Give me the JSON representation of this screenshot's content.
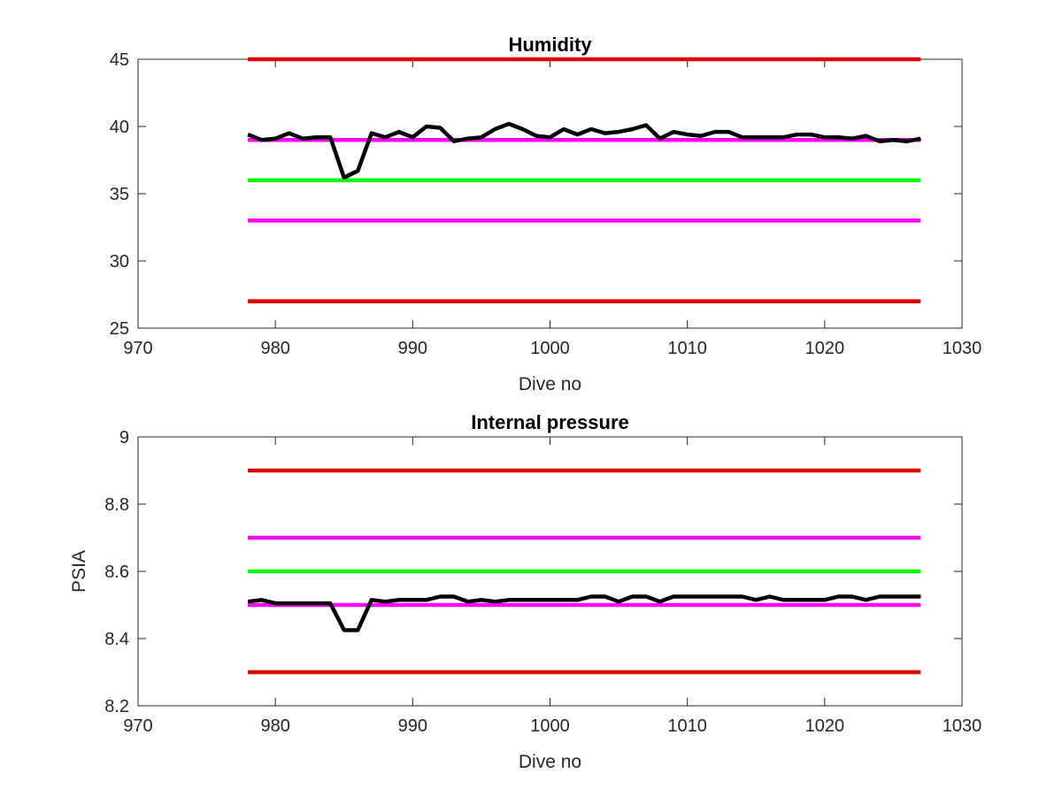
{
  "chart_data": [
    {
      "type": "line",
      "title": "Humidity",
      "xlabel": "Dive no",
      "ylabel": "",
      "xlim": [
        970,
        1030
      ],
      "ylim": [
        25,
        45
      ],
      "xticks": [
        970,
        980,
        990,
        1000,
        1010,
        1020,
        1030
      ],
      "xtick_labels": [
        "970",
        "980",
        "990",
        "1000",
        "1010",
        "1020",
        "1030"
      ],
      "yticks": [
        25,
        30,
        35,
        40,
        45
      ],
      "ytick_labels": [
        "25",
        "30",
        "35",
        "40",
        "45"
      ],
      "grid": false,
      "series": [
        {
          "color": "#dd0000",
          "kind": "threshold",
          "x": [
            978,
            1027
          ],
          "y": [
            45,
            45
          ]
        },
        {
          "color": "#ff00ff",
          "kind": "threshold",
          "x": [
            978,
            1027
          ],
          "y": [
            39,
            39
          ]
        },
        {
          "color": "#00ff00",
          "kind": "threshold",
          "x": [
            978,
            1027
          ],
          "y": [
            36,
            36
          ]
        },
        {
          "color": "#ff00ff",
          "kind": "threshold",
          "x": [
            978,
            1027
          ],
          "y": [
            33,
            33
          ]
        },
        {
          "color": "#dd0000",
          "kind": "threshold",
          "x": [
            978,
            1027
          ],
          "y": [
            27,
            27
          ]
        },
        {
          "color": "#000000",
          "kind": "measurement",
          "x": [
            978,
            979,
            980,
            981,
            982,
            983,
            984,
            985,
            986,
            987,
            988,
            989,
            990,
            991,
            992,
            993,
            994,
            995,
            996,
            997,
            998,
            999,
            1000,
            1001,
            1002,
            1003,
            1004,
            1005,
            1006,
            1007,
            1008,
            1009,
            1010,
            1011,
            1012,
            1013,
            1014,
            1015,
            1016,
            1017,
            1018,
            1019,
            1020,
            1021,
            1022,
            1023,
            1024,
            1025,
            1026,
            1027
          ],
          "y": [
            39.4,
            39.0,
            39.1,
            39.5,
            39.1,
            39.2,
            39.2,
            36.2,
            36.7,
            39.5,
            39.2,
            39.6,
            39.2,
            40.0,
            39.9,
            38.9,
            39.1,
            39.2,
            39.8,
            40.2,
            39.8,
            39.3,
            39.2,
            39.8,
            39.4,
            39.8,
            39.5,
            39.6,
            39.8,
            40.1,
            39.1,
            39.6,
            39.4,
            39.3,
            39.6,
            39.6,
            39.2,
            39.2,
            39.2,
            39.2,
            39.4,
            39.4,
            39.2,
            39.2,
            39.1,
            39.3,
            38.9,
            39.0,
            38.9,
            39.1
          ]
        }
      ]
    },
    {
      "type": "line",
      "title": "Internal pressure",
      "xlabel": "Dive no",
      "ylabel": "PSIA",
      "xlim": [
        970,
        1030
      ],
      "ylim": [
        8.2,
        9.0
      ],
      "xticks": [
        970,
        980,
        990,
        1000,
        1010,
        1020,
        1030
      ],
      "xtick_labels": [
        "970",
        "980",
        "990",
        "1000",
        "1010",
        "1020",
        "1030"
      ],
      "yticks": [
        8.2,
        8.4,
        8.6,
        8.8,
        9.0
      ],
      "ytick_labels": [
        "8.2",
        "8.4",
        "8.6",
        "8.8",
        "9"
      ],
      "grid": false,
      "series": [
        {
          "color": "#dd0000",
          "kind": "threshold",
          "x": [
            978,
            1027
          ],
          "y": [
            8.9,
            8.9
          ]
        },
        {
          "color": "#ff00ff",
          "kind": "threshold",
          "x": [
            978,
            1027
          ],
          "y": [
            8.7,
            8.7
          ]
        },
        {
          "color": "#00ff00",
          "kind": "threshold",
          "x": [
            978,
            1027
          ],
          "y": [
            8.6,
            8.6
          ]
        },
        {
          "color": "#ff00ff",
          "kind": "threshold",
          "x": [
            978,
            1027
          ],
          "y": [
            8.5,
            8.5
          ]
        },
        {
          "color": "#dd0000",
          "kind": "threshold",
          "x": [
            978,
            1027
          ],
          "y": [
            8.3,
            8.3
          ]
        },
        {
          "color": "#000000",
          "kind": "measurement",
          "x": [
            978,
            979,
            980,
            981,
            982,
            983,
            984,
            985,
            986,
            987,
            988,
            989,
            990,
            991,
            992,
            993,
            994,
            995,
            996,
            997,
            998,
            999,
            1000,
            1001,
            1002,
            1003,
            1004,
            1005,
            1006,
            1007,
            1008,
            1009,
            1010,
            1011,
            1012,
            1013,
            1014,
            1015,
            1016,
            1017,
            1018,
            1019,
            1020,
            1021,
            1022,
            1023,
            1024,
            1025,
            1026,
            1027
          ],
          "y": [
            8.51,
            8.515,
            8.505,
            8.505,
            8.505,
            8.505,
            8.505,
            8.425,
            8.425,
            8.515,
            8.51,
            8.515,
            8.515,
            8.515,
            8.525,
            8.525,
            8.51,
            8.515,
            8.51,
            8.515,
            8.515,
            8.515,
            8.515,
            8.515,
            8.515,
            8.525,
            8.525,
            8.51,
            8.525,
            8.525,
            8.51,
            8.525,
            8.525,
            8.525,
            8.525,
            8.525,
            8.525,
            8.515,
            8.525,
            8.515,
            8.515,
            8.515,
            8.515,
            8.525,
            8.525,
            8.515,
            8.525,
            8.525,
            8.525,
            8.525
          ]
        }
      ]
    }
  ]
}
